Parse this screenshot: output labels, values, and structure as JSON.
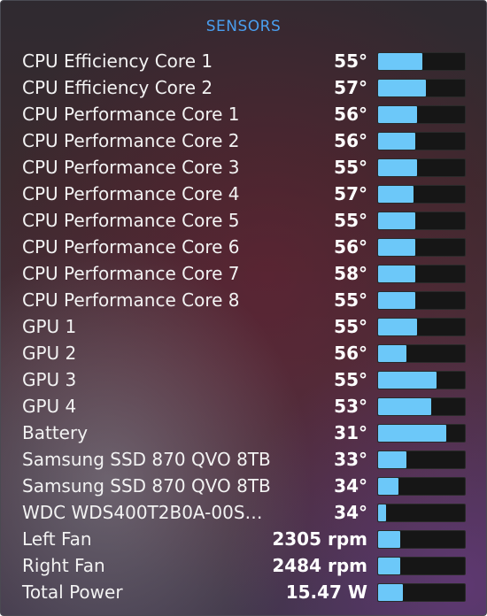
{
  "panel": {
    "title": "SENSORS"
  },
  "sensors": [
    {
      "label": "CPU Efficiency Core 1",
      "value": "55°",
      "level": 0.51
    },
    {
      "label": "CPU Efficiency Core 2",
      "value": "57°",
      "level": 0.55
    },
    {
      "label": "CPU Performance Core 1",
      "value": "56°",
      "level": 0.45
    },
    {
      "label": "CPU Performance Core 2",
      "value": "56°",
      "level": 0.43
    },
    {
      "label": "CPU Performance Core 3",
      "value": "55°",
      "level": 0.45
    },
    {
      "label": "CPU Performance Core 4",
      "value": "57°",
      "level": 0.41
    },
    {
      "label": "CPU Performance Core 5",
      "value": "55°",
      "level": 0.43
    },
    {
      "label": "CPU Performance Core 6",
      "value": "56°",
      "level": 0.43
    },
    {
      "label": "CPU Performance Core 7",
      "value": "58°",
      "level": 0.43
    },
    {
      "label": "CPU Performance Core 8",
      "value": "55°",
      "level": 0.43
    },
    {
      "label": "GPU 1",
      "value": "55°",
      "level": 0.45
    },
    {
      "label": "GPU 2",
      "value": "56°",
      "level": 0.33
    },
    {
      "label": "GPU 3",
      "value": "55°",
      "level": 0.67
    },
    {
      "label": "GPU 4",
      "value": "53°",
      "level": 0.61
    },
    {
      "label": "Battery",
      "value": "31°",
      "level": 0.79
    },
    {
      "label": "Samsung SSD 870 QVO 8TB",
      "value": "33°",
      "level": 0.33
    },
    {
      "label": "Samsung SSD 870 QVO 8TB",
      "value": "34°",
      "level": 0.23
    },
    {
      "label": "WDC  WDS400T2B0A-00S…",
      "value": "34°",
      "level": 0.09
    },
    {
      "label": "Left Fan",
      "value": "2305 rpm",
      "level": 0.25
    },
    {
      "label": "Right Fan",
      "value": "2484 rpm",
      "level": 0.25
    },
    {
      "label": "Total Power",
      "value": "15.47 W",
      "level": 0.29
    }
  ],
  "colors": {
    "title": "#4a9ff0",
    "bar_fill": "#6cc8f9",
    "bar_track": "#161616",
    "text": "#f2f2f2"
  }
}
